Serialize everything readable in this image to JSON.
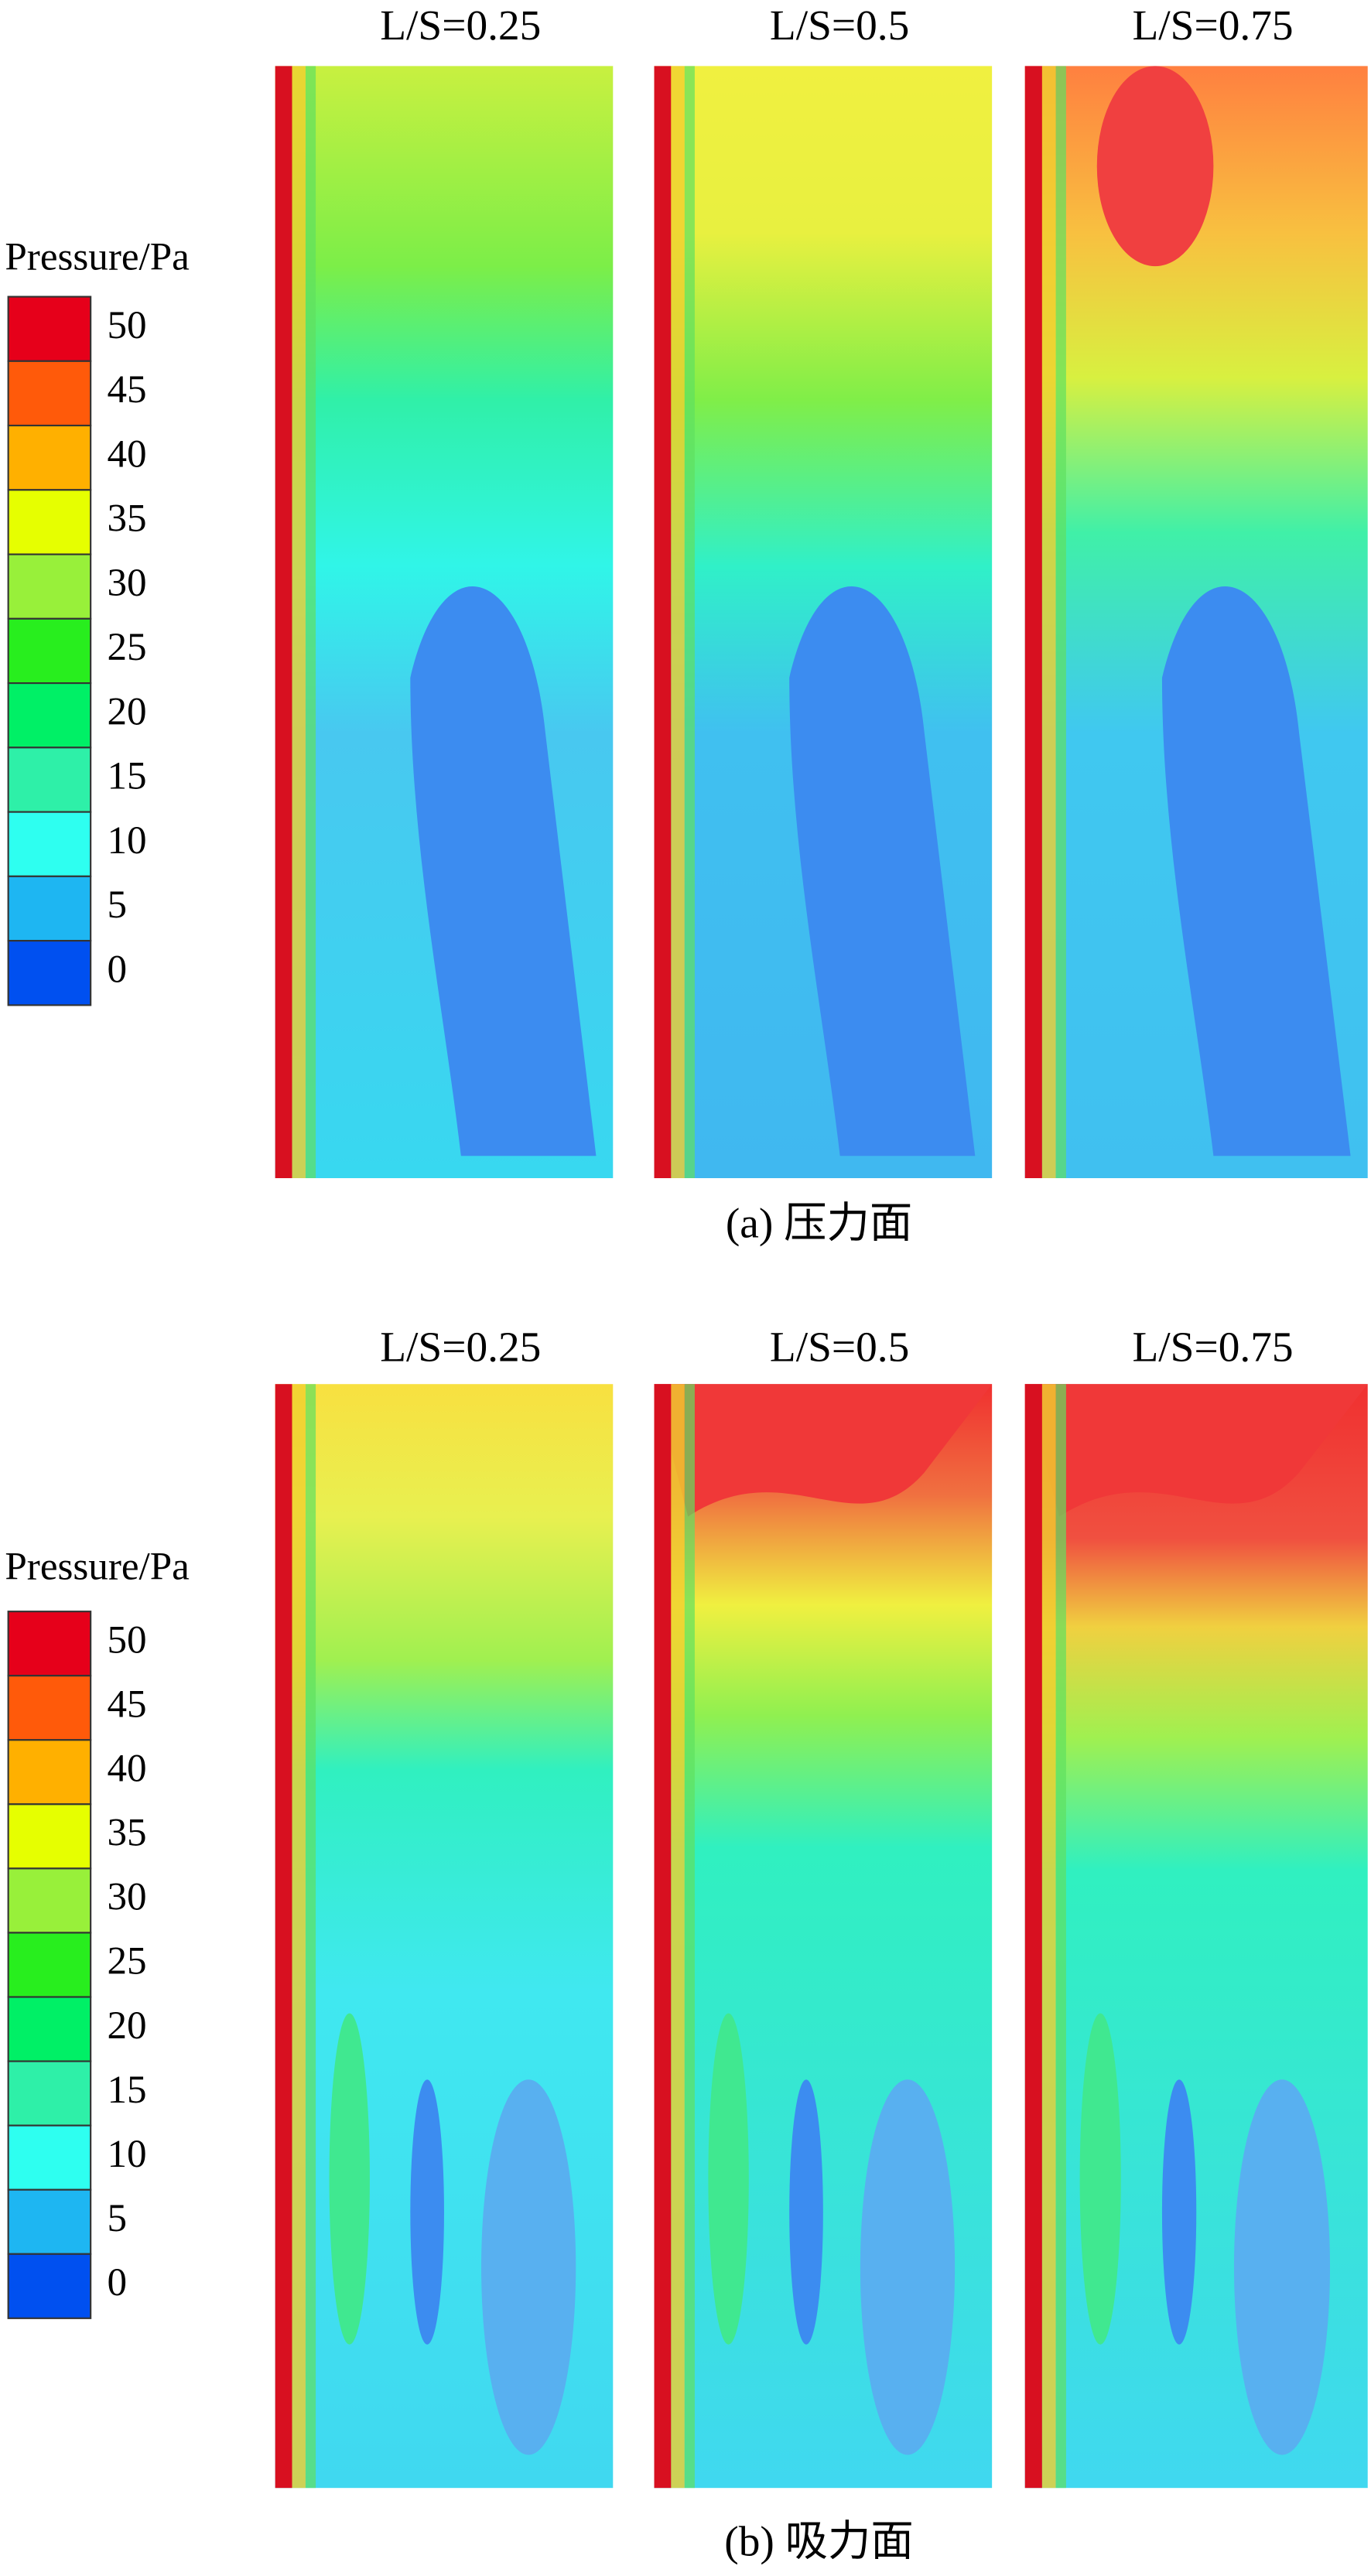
{
  "panels": [
    {
      "legend_title": "Pressure/Pa",
      "colorbar": {
        "ticks": [
          50,
          45,
          40,
          35,
          30,
          25,
          20,
          15,
          10,
          5,
          0
        ],
        "colors": [
          "#e6001a",
          "#ff5a0a",
          "#ffb000",
          "#e6ff00",
          "#98f03a",
          "#28ee1e",
          "#00f066",
          "#2ef0a8",
          "#2efff0",
          "#1eb6f2",
          "#0050f0"
        ]
      },
      "plots": [
        {
          "title": "L/S=0.25"
        },
        {
          "title": "L/S=0.5"
        },
        {
          "title": "L/S=0.75"
        }
      ],
      "caption": "(a) 压力面"
    },
    {
      "legend_title": "Pressure/Pa",
      "colorbar": {
        "ticks": [
          50,
          45,
          40,
          35,
          30,
          25,
          20,
          15,
          10,
          5,
          0
        ],
        "colors": [
          "#e6001a",
          "#ff5a0a",
          "#ffb000",
          "#e6ff00",
          "#98f03a",
          "#28ee1e",
          "#00f066",
          "#2ef0a8",
          "#2efff0",
          "#1eb6f2",
          "#0050f0"
        ]
      },
      "plots": [
        {
          "title": "L/S=0.25"
        },
        {
          "title": "L/S=0.5"
        },
        {
          "title": "L/S=0.75"
        }
      ],
      "caption": "(b) 吸力面"
    }
  ]
}
